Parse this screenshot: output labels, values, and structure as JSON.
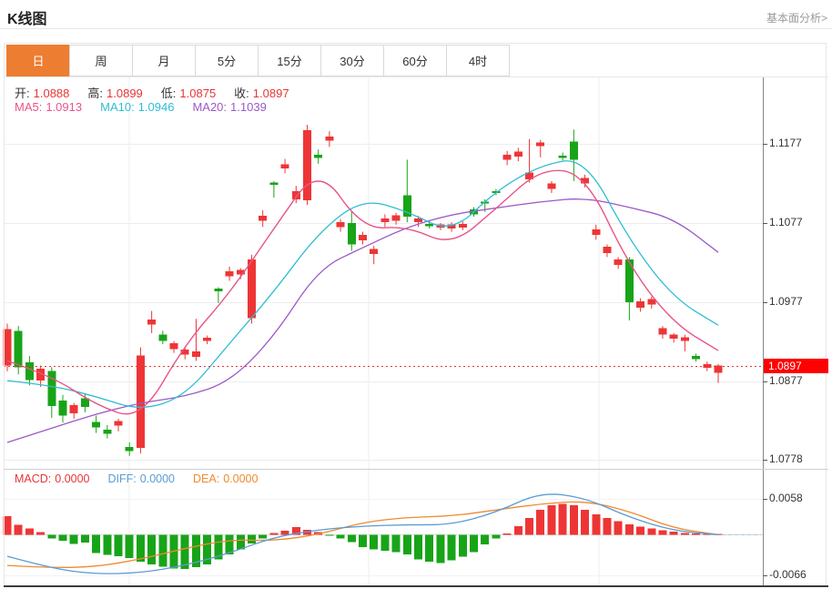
{
  "header": {
    "title": "K线图",
    "link_label": "基本面分析>"
  },
  "tabs": {
    "items": [
      "日",
      "周",
      "月",
      "5分",
      "15分",
      "30分",
      "60分",
      "4时"
    ],
    "active_index": 0
  },
  "legend": {
    "ohlc": [
      {
        "label": "开:",
        "value": "1.0888"
      },
      {
        "label": "高:",
        "value": "1.0899"
      },
      {
        "label": "低:",
        "value": "1.0875"
      },
      {
        "label": "收:",
        "value": "1.0897"
      }
    ],
    "ma": [
      {
        "label": "MA5:",
        "value": "1.0913",
        "color": "#e8548a"
      },
      {
        "label": "MA10:",
        "value": "1.0946",
        "color": "#2fbdd4"
      },
      {
        "label": "MA20:",
        "value": "1.1039",
        "color": "#9d59c6"
      }
    ],
    "macd": [
      {
        "label": "MACD:",
        "value": "0.0000",
        "color": "#e83535"
      },
      {
        "label": "DIFF:",
        "value": "0.0000",
        "color": "#5b9bd5"
      },
      {
        "label": "DEA:",
        "value": "0.0000",
        "color": "#ef8a2e"
      }
    ]
  },
  "axis": {
    "price_ticks": [
      "1.1177",
      "1.1077",
      "1.0977",
      "1.0877",
      "1.0778"
    ],
    "macd_ticks": [
      "0.0058",
      "-0.0066"
    ],
    "current_price": "1.0897"
  },
  "colors": {
    "up": "#ee3535",
    "down": "#18a418",
    "ma5": "#e8548a",
    "ma10": "#2fbdd4",
    "ma20": "#9d59c6",
    "diff": "#5b9bd5",
    "dea": "#ef8a2e",
    "active_tab": "#ed7d31",
    "badge_bg": "#fe0000",
    "price_line": "#f03030",
    "ohlc_value": "#e83535"
  },
  "chart_data": {
    "type": "candlestick",
    "title": "K线图 (daily)",
    "panels": [
      "price",
      "macd"
    ],
    "price_axis": {
      "ticks": [
        1.1177,
        1.1077,
        1.0977,
        1.0877,
        1.0778
      ],
      "current": 1.0897
    },
    "macd_axis": {
      "ticks": [
        0.0058,
        -0.0066
      ],
      "zero": 0
    },
    "legend_values": {
      "open": 1.0888,
      "high": 1.0899,
      "low": 1.0875,
      "close": 1.0897,
      "ma5": 1.0913,
      "ma10": 1.0946,
      "ma20": 1.1039,
      "macd": 0.0,
      "diff": 0.0,
      "dea": 0.0
    },
    "candles": [
      [
        1.0897,
        1.095,
        1.089,
        1.0943
      ],
      [
        1.0941,
        1.0947,
        1.0886,
        1.0895
      ],
      [
        1.0901,
        1.0909,
        1.0872,
        1.0879
      ],
      [
        1.0878,
        1.0897,
        1.087,
        1.0893
      ],
      [
        1.089,
        1.0895,
        1.0831,
        1.0846
      ],
      [
        1.0853,
        1.086,
        1.0825,
        1.0834
      ],
      [
        1.0837,
        1.085,
        1.083,
        1.0847
      ],
      [
        1.0856,
        1.0862,
        1.0838,
        1.0845
      ],
      [
        1.0826,
        1.0834,
        1.0812,
        1.0819
      ],
      [
        1.0816,
        1.0822,
        1.0805,
        1.0811
      ],
      [
        1.0821,
        1.083,
        1.0814,
        1.0827
      ],
      [
        1.0794,
        1.08,
        1.0783,
        1.0789
      ],
      [
        1.0793,
        1.092,
        1.0786,
        1.091
      ],
      [
        1.0949,
        1.0966,
        1.0938,
        1.0955
      ],
      [
        1.0936,
        1.0941,
        1.0924,
        1.0928
      ],
      [
        1.0918,
        1.0928,
        1.0913,
        1.0925
      ],
      [
        1.0911,
        1.092,
        1.0905,
        1.0917
      ],
      [
        1.0908,
        1.0956,
        1.0903,
        1.0915
      ],
      [
        1.0928,
        1.0935,
        1.0924,
        1.0932
      ],
      [
        1.0994,
        1.0996,
        1.0976,
        1.0991
      ],
      [
        1.101,
        1.1022,
        1.1004,
        1.1016
      ],
      [
        1.1012,
        1.102,
        1.1006,
        1.1018
      ],
      [
        1.0957,
        1.1037,
        1.095,
        1.1031
      ],
      [
        1.108,
        1.1093,
        1.1072,
        1.1086
      ],
      [
        1.1128,
        1.113,
        1.1109,
        1.1125
      ],
      [
        1.1146,
        1.1158,
        1.114,
        1.1151
      ],
      [
        1.1107,
        1.1124,
        1.1102,
        1.1117
      ],
      [
        1.1106,
        1.1201,
        1.11,
        1.1194
      ],
      [
        1.1163,
        1.117,
        1.1152,
        1.1159
      ],
      [
        1.1181,
        1.1193,
        1.1173,
        1.1186
      ],
      [
        1.1072,
        1.1082,
        1.1066,
        1.1078
      ],
      [
        1.1077,
        1.1092,
        1.1042,
        1.105
      ],
      [
        1.1055,
        1.1066,
        1.105,
        1.1062
      ],
      [
        1.1038,
        1.1048,
        1.1025,
        1.1044
      ],
      [
        1.1078,
        1.1088,
        1.1072,
        1.1083
      ],
      [
        1.108,
        1.109,
        1.1075,
        1.1087
      ],
      [
        1.1112,
        1.1157,
        1.1078,
        1.1085
      ],
      [
        1.1078,
        1.1086,
        1.1072,
        1.1083
      ],
      [
        1.1076,
        1.108,
        1.107,
        1.1073
      ],
      [
        1.1071,
        1.1077,
        1.1068,
        1.1075
      ],
      [
        1.107,
        1.1078,
        1.1066,
        1.1075
      ],
      [
        1.1071,
        1.1079,
        1.1068,
        1.1076
      ],
      [
        1.1094,
        1.1097,
        1.1085,
        1.1088
      ],
      [
        1.1104,
        1.1107,
        1.1091,
        1.1102
      ],
      [
        1.1117,
        1.112,
        1.1112,
        1.1115
      ],
      [
        1.1157,
        1.1168,
        1.115,
        1.1163
      ],
      [
        1.1161,
        1.1172,
        1.1155,
        1.1167
      ],
      [
        1.1132,
        1.1183,
        1.1128,
        1.1141
      ],
      [
        1.1174,
        1.1182,
        1.116,
        1.1179
      ],
      [
        1.112,
        1.113,
        1.1115,
        1.1127
      ],
      [
        1.1162,
        1.1166,
        1.1156,
        1.1159
      ],
      [
        1.118,
        1.1195,
        1.113,
        1.1157
      ],
      [
        1.1127,
        1.1138,
        1.1122,
        1.1134
      ],
      [
        1.1062,
        1.1075,
        1.1056,
        1.1069
      ],
      [
        1.1039,
        1.105,
        1.1034,
        1.1047
      ],
      [
        1.1024,
        1.1034,
        1.1019,
        1.1031
      ],
      [
        1.1031,
        1.1034,
        1.0954,
        1.0977
      ],
      [
        1.097,
        1.0982,
        1.0965,
        1.0978
      ],
      [
        1.0974,
        1.0984,
        1.0969,
        1.0981
      ],
      [
        1.0936,
        1.0947,
        1.0931,
        1.0944
      ],
      [
        1.0931,
        1.0938,
        1.0926,
        1.0936
      ],
      [
        1.0928,
        1.0936,
        1.0915,
        1.0933
      ],
      [
        1.0909,
        1.0912,
        1.0902,
        1.0905
      ],
      [
        1.0894,
        1.0902,
        1.089,
        1.0899
      ],
      [
        1.0888,
        1.0899,
        1.0875,
        1.0897
      ]
    ],
    "ma_point_stride": 4,
    "ma5_points": [
      1.0903,
      1.0884,
      1.0847,
      1.0828,
      1.0924,
      1.0988,
      1.107,
      1.115,
      1.1069,
      1.1073,
      1.1048,
      1.1095,
      1.1146,
      1.114,
      1.1022,
      1.095,
      1.0916
    ],
    "ma10_points": [
      1.0878,
      1.0872,
      1.0858,
      1.084,
      1.0858,
      1.0925,
      1.099,
      1.1065,
      1.1108,
      1.1092,
      1.1064,
      1.1118,
      1.115,
      1.116,
      1.1055,
      1.0982,
      1.0948
    ],
    "ma20_points": [
      1.08,
      1.0818,
      1.0836,
      1.085,
      1.0858,
      1.0876,
      1.0933,
      1.1019,
      1.1046,
      1.1072,
      1.1088,
      1.1096,
      1.1104,
      1.1109,
      1.1097,
      1.1083,
      1.104
    ],
    "macd_hist": [
      0.003,
      0.0016,
      0.001,
      0.0004,
      -0.0006,
      -0.001,
      -0.0015,
      -0.0013,
      -0.003,
      -0.0033,
      -0.0035,
      -0.0038,
      -0.0044,
      -0.0048,
      -0.0052,
      -0.0055,
      -0.0056,
      -0.0053,
      -0.0048,
      -0.004,
      -0.0032,
      -0.0024,
      -0.0014,
      -0.0006,
      0.0003,
      0.0006,
      0.0012,
      0.0008,
      0.0004,
      -0.0001,
      -0.0006,
      -0.0012,
      -0.002,
      -0.0024,
      -0.0026,
      -0.0028,
      -0.0032,
      -0.004,
      -0.0044,
      -0.0046,
      -0.0042,
      -0.0036,
      -0.0028,
      -0.0016,
      -0.0006,
      0.0002,
      0.0014,
      0.0027,
      0.004,
      0.0048,
      0.005,
      0.0048,
      0.004,
      0.0033,
      0.0027,
      0.0022,
      0.0017,
      0.0013,
      0.001,
      0.0007,
      0.0005,
      0.0003,
      0.0002,
      0.0001,
      0.0001
    ],
    "diff_points": [
      -0.0035,
      -0.0055,
      -0.0064,
      -0.0062,
      -0.005,
      -0.003,
      -0.0004,
      0.0008,
      0.0014,
      0.0016,
      0.0016,
      0.0036,
      0.0069,
      0.006,
      0.0028,
      0.0006,
      0.0
    ],
    "dea_points": [
      -0.005,
      -0.0054,
      -0.0052,
      -0.004,
      -0.0022,
      -0.0008,
      -0.001,
      0.0,
      0.002,
      0.0028,
      0.003,
      0.004,
      0.005,
      0.0055,
      0.0038,
      0.001,
      0.0
    ]
  }
}
